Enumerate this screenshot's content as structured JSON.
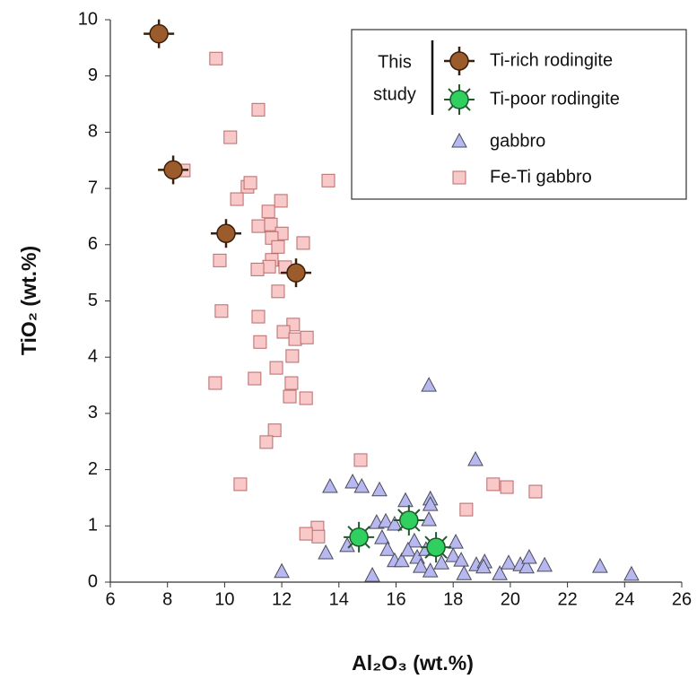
{
  "chart_data": {
    "type": "scatter",
    "x_label": "Al₂O₃ (wt.%)",
    "y_label": "TiO₂ (wt.%)",
    "xlim": [
      6,
      26
    ],
    "xticks": [
      6,
      8,
      10,
      12,
      14,
      16,
      18,
      20,
      22,
      24,
      26
    ],
    "ylim": [
      0,
      10
    ],
    "yticks": [
      0,
      1,
      2,
      3,
      4,
      5,
      6,
      7,
      8,
      9,
      10
    ],
    "grid": false,
    "legend_position": "upper right",
    "legend_group_label": [
      "This",
      "study"
    ],
    "series": [
      {
        "name": "Ti-rich rodingite",
        "color": "#9c5b2b",
        "marker": "cross-circle",
        "x": [
          7.7,
          8.2,
          10.05,
          12.5
        ],
        "y": [
          9.75,
          7.33,
          6.2,
          5.5
        ]
      },
      {
        "name": "Ti-poor rodingite",
        "color": "#2fd060",
        "marker": "star",
        "x": [
          14.7,
          16.45,
          17.4
        ],
        "y": [
          0.8,
          1.1,
          0.62
        ]
      },
      {
        "name": "gabbro",
        "color": "#b8b8f0",
        "marker": "triangle",
        "x": [
          17.15,
          18.78,
          13.69,
          14.48,
          14.8,
          15.42,
          16.33,
          17.2,
          17.2,
          13.54,
          12.0,
          15.17,
          14.29,
          15.32,
          15.64,
          15.95,
          15.51,
          15.7,
          15.95,
          16.2,
          16.64,
          16.42,
          16.74,
          17.05,
          17.15,
          16.86,
          17.2,
          17.59,
          18.0,
          18.09,
          18.28,
          18.38,
          18.81,
          19.1,
          19.63,
          19.94,
          20.35,
          20.57,
          20.66,
          21.2,
          23.14,
          24.24,
          19.06
        ],
        "y": [
          3.49,
          2.17,
          1.69,
          1.77,
          1.69,
          1.63,
          1.44,
          1.47,
          1.37,
          0.51,
          0.18,
          0.11,
          0.64,
          1.05,
          1.07,
          1.02,
          0.78,
          0.57,
          0.37,
          0.37,
          0.72,
          0.56,
          0.43,
          0.57,
          1.1,
          0.27,
          0.19,
          0.33,
          0.46,
          0.7,
          0.38,
          0.14,
          0.3,
          0.35,
          0.14,
          0.33,
          0.3,
          0.26,
          0.43,
          0.29,
          0.27,
          0.13,
          0.26
        ]
      },
      {
        "name": "Fe-Ti gabbro",
        "color": "#f9c9c9",
        "marker": "square",
        "x": [
          9.7,
          10.2,
          11.18,
          8.57,
          10.8,
          10.9,
          10.43,
          11.97,
          13.63,
          11.53,
          11.18,
          11.62,
          12.0,
          11.65,
          11.87,
          12.75,
          11.65,
          11.56,
          11.15,
          12.12,
          9.83,
          11.87,
          9.89,
          11.18,
          12.4,
          12.06,
          12.47,
          12.88,
          11.24,
          11.81,
          12.37,
          11.05,
          9.67,
          12.34,
          12.28,
          12.85,
          11.75,
          11.46,
          14.76,
          10.55,
          19.4,
          19.88,
          20.88,
          18.46,
          13.25,
          13.28,
          12.85
        ],
        "y": [
          9.31,
          7.91,
          8.4,
          7.32,
          7.03,
          7.1,
          6.81,
          6.78,
          7.14,
          6.59,
          6.33,
          6.36,
          6.2,
          6.12,
          5.96,
          6.03,
          5.73,
          5.61,
          5.56,
          5.6,
          5.72,
          5.17,
          4.82,
          4.72,
          4.58,
          4.45,
          4.32,
          4.35,
          4.27,
          3.81,
          4.02,
          3.62,
          3.54,
          3.54,
          3.3,
          3.27,
          2.7,
          2.49,
          2.17,
          1.74,
          1.74,
          1.69,
          1.61,
          1.29,
          0.97,
          0.81,
          0.86
        ]
      }
    ]
  }
}
